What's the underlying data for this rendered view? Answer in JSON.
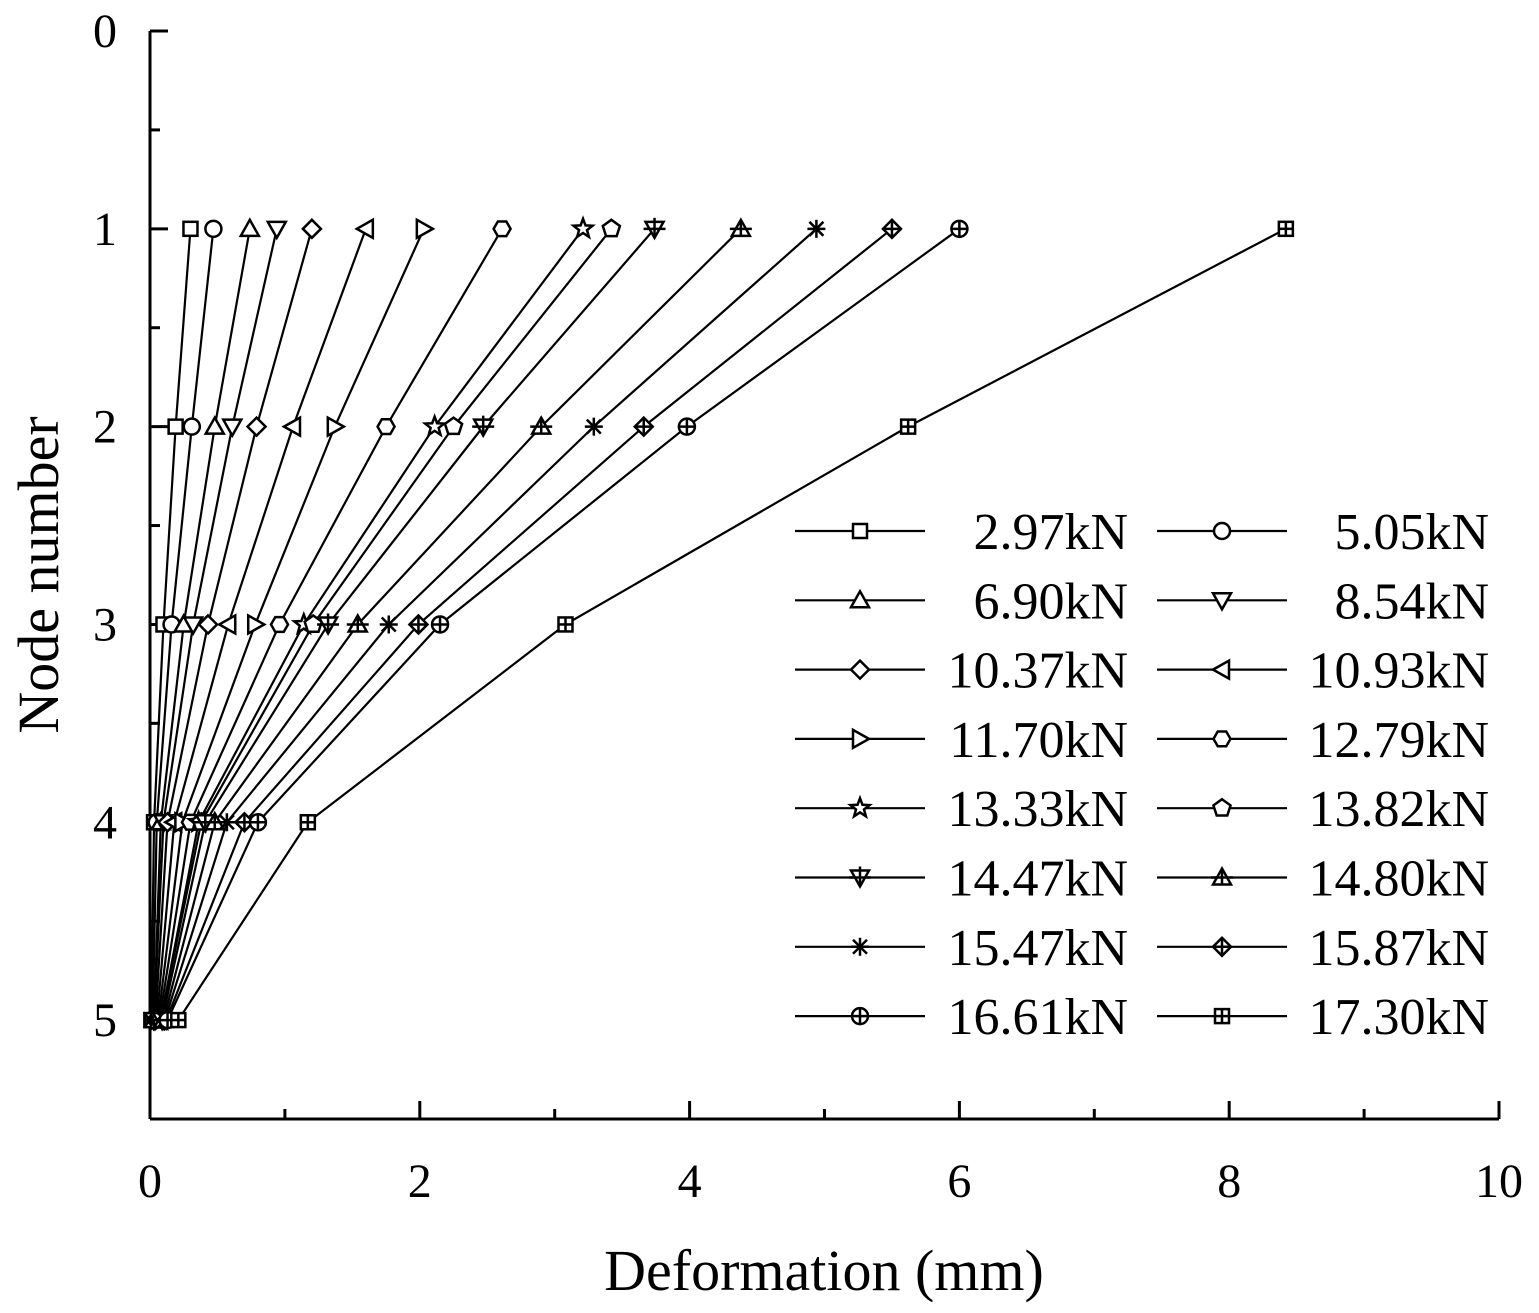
{
  "chart_data": {
    "type": "line",
    "title": "",
    "xlabel": "Deformation (mm)",
    "ylabel": "Node number",
    "xlim": [
      0,
      10
    ],
    "ylim": [
      0,
      5.5
    ],
    "y_inverted": true,
    "grid": false,
    "legend_position": "right-middle",
    "x_ticks": [
      "0",
      "2",
      "4",
      "6",
      "8",
      "10"
    ],
    "y_ticks": [
      "0",
      "1",
      "2",
      "3",
      "4",
      "5"
    ],
    "nodes": [
      1,
      2,
      3,
      4,
      5
    ],
    "series": [
      {
        "name": "2.97kN",
        "marker": "square",
        "values": [
          0.3,
          0.19,
          0.1,
          0.03,
          0.01
        ]
      },
      {
        "name": "5.05kN",
        "marker": "circle",
        "values": [
          0.47,
          0.31,
          0.16,
          0.05,
          0.02
        ]
      },
      {
        "name": "6.90kN",
        "marker": "triangle-up",
        "values": [
          0.74,
          0.48,
          0.25,
          0.08,
          0.03
        ]
      },
      {
        "name": "8.54kN",
        "marker": "triangle-down",
        "values": [
          0.94,
          0.61,
          0.32,
          0.1,
          0.03
        ]
      },
      {
        "name": "10.37kN",
        "marker": "diamond",
        "values": [
          1.2,
          0.79,
          0.43,
          0.13,
          0.04
        ]
      },
      {
        "name": "10.93kN",
        "marker": "triangle-left",
        "values": [
          1.6,
          1.06,
          0.58,
          0.18,
          0.05
        ]
      },
      {
        "name": "11.70kN",
        "marker": "triangle-right",
        "values": [
          2.03,
          1.37,
          0.78,
          0.24,
          0.06
        ]
      },
      {
        "name": "12.79kN",
        "marker": "hexagon",
        "values": [
          2.61,
          1.75,
          0.96,
          0.3,
          0.07
        ]
      },
      {
        "name": "13.33kN",
        "marker": "star",
        "values": [
          3.21,
          2.11,
          1.14,
          0.36,
          0.08
        ]
      },
      {
        "name": "13.82kN",
        "marker": "pentagon",
        "values": [
          3.42,
          2.25,
          1.21,
          0.38,
          0.08
        ]
      },
      {
        "name": "14.47kN",
        "marker": "triangle-down-plus",
        "values": [
          3.74,
          2.47,
          1.32,
          0.41,
          0.09
        ]
      },
      {
        "name": "14.80kN",
        "marker": "triangle-up-plus",
        "values": [
          4.38,
          2.9,
          1.54,
          0.48,
          0.1
        ]
      },
      {
        "name": "15.47kN",
        "marker": "asterisk",
        "values": [
          4.94,
          3.29,
          1.77,
          0.57,
          0.11
        ]
      },
      {
        "name": "15.87kN",
        "marker": "diamond-plus",
        "values": [
          5.5,
          3.66,
          1.99,
          0.7,
          0.12
        ]
      },
      {
        "name": "16.61kN",
        "marker": "circle-plus",
        "values": [
          6.0,
          3.98,
          2.15,
          0.8,
          0.13
        ]
      },
      {
        "name": "17.30kN",
        "marker": "square-grid",
        "values": [
          8.42,
          5.62,
          3.08,
          1.17,
          0.21
        ]
      }
    ]
  }
}
